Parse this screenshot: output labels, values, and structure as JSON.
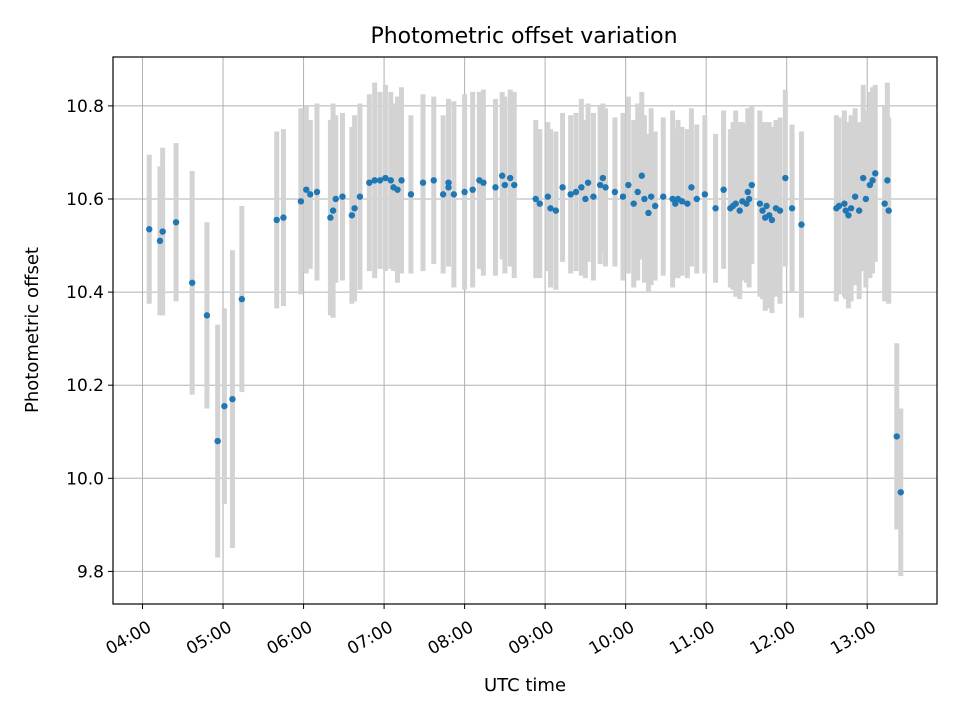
{
  "chart_data": {
    "type": "scatter",
    "title": "Photometric offset variation",
    "xlabel": "UTC time",
    "ylabel": "Photometric offset",
    "x_format": "HH:MM",
    "xlim": [
      "03:38",
      "13:52"
    ],
    "ylim": [
      9.73,
      10.905
    ],
    "x_ticks": [
      "04:00",
      "05:00",
      "06:00",
      "07:00",
      "08:00",
      "09:00",
      "10:00",
      "11:00",
      "12:00",
      "13:00"
    ],
    "y_ticks": [
      9.8,
      10.0,
      10.2,
      10.4,
      10.6,
      10.8
    ],
    "y_tick_labels": [
      "9.8",
      "10.0",
      "10.2",
      "10.4",
      "10.6",
      "10.8"
    ],
    "grid": true,
    "legend": "none",
    "point_color": "#1f77b4",
    "errorbar_color": "#d3d3d3",
    "series": [
      {
        "x": [
          "04:05",
          "04:13",
          "04:15",
          "04:25",
          "04:37",
          "04:48",
          "04:56",
          "05:01",
          "05:07",
          "05:14",
          "05:40",
          "05:45",
          "05:58",
          "06:02",
          "06:05",
          "06:10",
          "06:20",
          "06:22",
          "06:24",
          "06:29",
          "06:36",
          "06:38",
          "06:42",
          "06:49",
          "06:53",
          "06:57",
          "07:01",
          "07:05",
          "07:07",
          "07:10",
          "07:13",
          "07:20",
          "07:29",
          "07:37",
          "07:44",
          "07:48",
          "07:48",
          "07:52",
          "08:00",
          "08:06",
          "08:11",
          "08:14",
          "08:23",
          "08:28",
          "08:30",
          "08:34",
          "08:37",
          "08:53",
          "08:56",
          "09:02",
          "09:04",
          "09:08",
          "09:13",
          "09:19",
          "09:23",
          "09:27",
          "09:30",
          "09:32",
          "09:36",
          "09:41",
          "09:43",
          "09:45",
          "09:52",
          "09:58",
          "10:02",
          "10:06",
          "10:09",
          "10:12",
          "10:14",
          "10:17",
          "10:19",
          "10:22",
          "10:28",
          "10:35",
          "10:37",
          "10:39",
          "10:42",
          "10:46",
          "10:49",
          "10:53",
          "10:59",
          "11:07",
          "11:13",
          "11:18",
          "11:20",
          "11:22",
          "11:25",
          "11:27",
          "11:30",
          "11:31",
          "11:32",
          "11:34",
          "11:40",
          "11:42",
          "11:44",
          "11:45",
          "11:47",
          "11:49",
          "11:52",
          "11:55",
          "11:59",
          "12:04",
          "12:11",
          "12:37",
          "12:39",
          "12:43",
          "12:44",
          "12:46",
          "12:48",
          "12:51",
          "12:54",
          "12:57",
          "12:59",
          "13:02",
          "13:04",
          "13:06",
          "13:13",
          "13:15",
          "13:16",
          "13:22",
          "13:25"
        ],
        "y": [
          10.535,
          10.51,
          10.53,
          10.55,
          10.42,
          10.35,
          10.08,
          10.155,
          10.17,
          10.385,
          10.555,
          10.56,
          10.595,
          10.62,
          10.61,
          10.615,
          10.56,
          10.575,
          10.6,
          10.605,
          10.565,
          10.58,
          10.605,
          10.635,
          10.64,
          10.64,
          10.645,
          10.64,
          10.625,
          10.62,
          10.64,
          10.61,
          10.635,
          10.64,
          10.61,
          10.625,
          10.635,
          10.61,
          10.615,
          10.62,
          10.64,
          10.635,
          10.625,
          10.65,
          10.63,
          10.645,
          10.63,
          10.6,
          10.59,
          10.605,
          10.58,
          10.575,
          10.625,
          10.61,
          10.615,
          10.625,
          10.6,
          10.635,
          10.605,
          10.63,
          10.645,
          10.625,
          10.615,
          10.605,
          10.63,
          10.59,
          10.615,
          10.65,
          10.6,
          10.57,
          10.605,
          10.585,
          10.605,
          10.6,
          10.59,
          10.6,
          10.595,
          10.59,
          10.625,
          10.6,
          10.61,
          10.58,
          10.62,
          10.58,
          10.585,
          10.59,
          10.575,
          10.595,
          10.59,
          10.615,
          10.6,
          10.63,
          10.59,
          10.575,
          10.56,
          10.585,
          10.565,
          10.555,
          10.58,
          10.575,
          10.645,
          10.58,
          10.545,
          10.58,
          10.585,
          10.59,
          10.575,
          10.565,
          10.58,
          10.605,
          10.575,
          10.645,
          10.6,
          10.63,
          10.64,
          10.655,
          10.59,
          10.64,
          10.575,
          10.09,
          9.97
        ],
        "err": [
          0.16,
          0.16,
          0.18,
          0.17,
          0.24,
          0.2,
          0.25,
          0.21,
          0.32,
          0.2,
          0.19,
          0.19,
          0.2,
          0.18,
          0.16,
          0.19,
          0.21,
          0.23,
          0.18,
          0.18,
          0.19,
          0.2,
          0.2,
          0.19,
          0.21,
          0.19,
          0.2,
          0.19,
          0.18,
          0.2,
          0.2,
          0.17,
          0.19,
          0.18,
          0.17,
          0.16,
          0.18,
          0.2,
          0.21,
          0.21,
          0.19,
          0.2,
          0.19,
          0.18,
          0.19,
          0.19,
          0.2,
          0.17,
          0.16,
          0.16,
          0.17,
          0.17,
          0.16,
          0.17,
          0.17,
          0.19,
          0.17,
          0.17,
          0.18,
          0.17,
          0.16,
          0.17,
          0.16,
          0.18,
          0.19,
          0.18,
          0.19,
          0.18,
          0.18,
          0.17,
          0.19,
          0.16,
          0.17,
          0.19,
          0.16,
          0.17,
          0.16,
          0.16,
          0.17,
          0.16,
          0.17,
          0.16,
          0.17,
          0.17,
          0.18,
          0.2,
          0.19,
          0.17,
          0.17,
          0.18,
          0.19,
          0.17,
          0.2,
          0.19,
          0.2,
          0.18,
          0.2,
          0.2,
          0.19,
          0.2,
          0.19,
          0.18,
          0.2,
          0.2,
          0.19,
          0.2,
          0.19,
          0.2,
          0.2,
          0.19,
          0.19,
          0.2,
          0.19,
          0.2,
          0.2,
          0.19,
          0.21,
          0.21,
          0.2,
          0.2,
          0.18
        ]
      }
    ]
  }
}
